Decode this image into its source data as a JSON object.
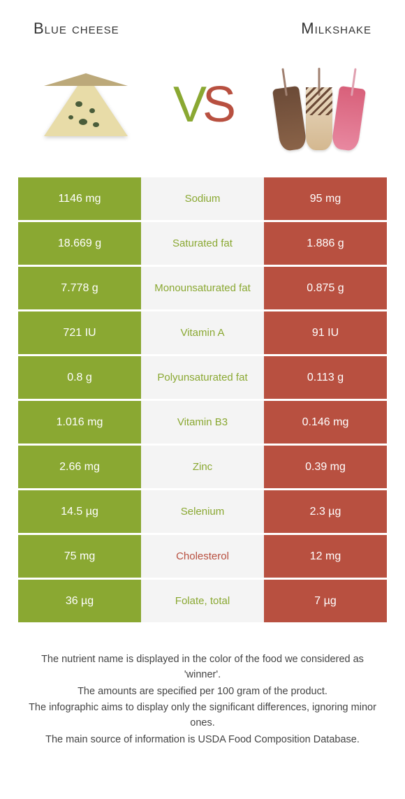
{
  "colors": {
    "left": "#8aa832",
    "right": "#b85040",
    "mid_bg": "#f4f4f4"
  },
  "left_food": {
    "title": "Blue cheese"
  },
  "right_food": {
    "title": "Milkshake"
  },
  "vs": {
    "v": "V",
    "s": "S"
  },
  "rows": [
    {
      "left": "1146 mg",
      "label": "Sodium",
      "right": "95 mg",
      "winner": "left"
    },
    {
      "left": "18.669 g",
      "label": "Saturated fat",
      "right": "1.886 g",
      "winner": "left"
    },
    {
      "left": "7.778 g",
      "label": "Monounsaturated fat",
      "right": "0.875 g",
      "winner": "left"
    },
    {
      "left": "721 IU",
      "label": "Vitamin A",
      "right": "91 IU",
      "winner": "left"
    },
    {
      "left": "0.8 g",
      "label": "Polyunsaturated fat",
      "right": "0.113 g",
      "winner": "left"
    },
    {
      "left": "1.016 mg",
      "label": "Vitamin B3",
      "right": "0.146 mg",
      "winner": "left"
    },
    {
      "left": "2.66 mg",
      "label": "Zinc",
      "right": "0.39 mg",
      "winner": "left"
    },
    {
      "left": "14.5 µg",
      "label": "Selenium",
      "right": "2.3 µg",
      "winner": "left"
    },
    {
      "left": "75 mg",
      "label": "Cholesterol",
      "right": "12 mg",
      "winner": "right"
    },
    {
      "left": "36 µg",
      "label": "Folate, total",
      "right": "7 µg",
      "winner": "left"
    }
  ],
  "footer": [
    "The nutrient name is displayed in the color of the food we considered as 'winner'.",
    "The amounts are specified per 100 gram of the product.",
    "The infographic aims to display only the significant differences, ignoring minor ones.",
    "The main source of information is USDA Food Composition Database."
  ]
}
